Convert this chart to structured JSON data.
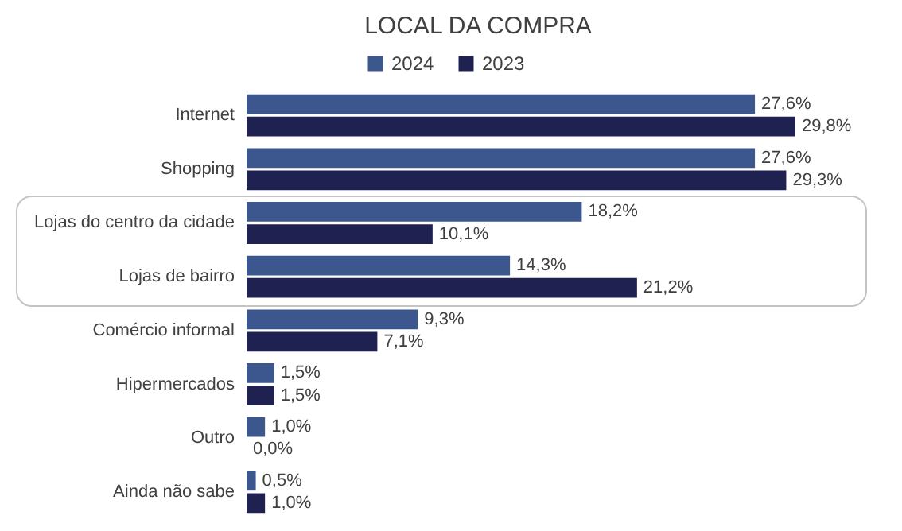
{
  "chart_data": {
    "type": "bar",
    "orientation": "horizontal",
    "title": "LOCAL DA COMPRA",
    "legend": "top",
    "categories": [
      "Internet",
      "Shopping",
      "Lojas do centro da cidade",
      "Lojas de bairro",
      "Comércio informal",
      "Hipermercados",
      "Outro",
      "Ainda não sabe"
    ],
    "series": [
      {
        "name": "2024",
        "color": "#3c568e",
        "values": [
          27.6,
          27.6,
          18.2,
          14.3,
          9.3,
          1.5,
          1.0,
          0.5
        ],
        "value_labels": [
          "27,6%",
          "27,6%",
          "18,2%",
          "14,3%",
          "9,3%",
          "1,5%",
          "1,0%",
          "0,5%"
        ]
      },
      {
        "name": "2023",
        "color": "#1f2250",
        "values": [
          29.8,
          29.3,
          10.1,
          21.2,
          7.1,
          1.5,
          0.0,
          1.0
        ],
        "value_labels": [
          "29,8%",
          "29,3%",
          "10,1%",
          "21,2%",
          "7,1%",
          "1,5%",
          "0,0%",
          "1,0%"
        ]
      }
    ]
  }
}
